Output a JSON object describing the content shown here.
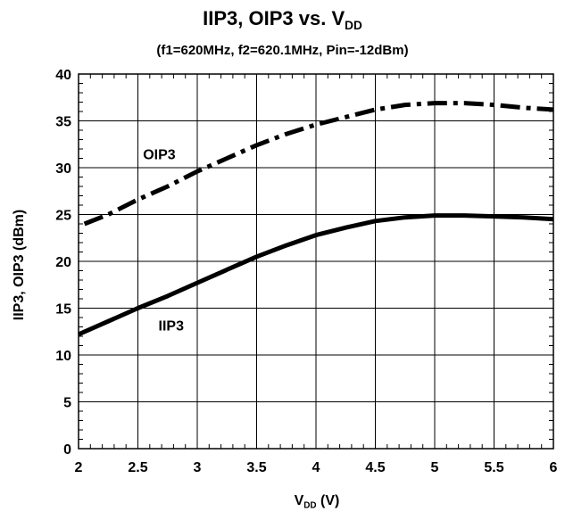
{
  "chart_data": {
    "type": "line",
    "title_main": "IIP3, OIP3 vs. V",
    "title_sub": "DD",
    "subtitle": "(f1=620MHz, f2=620.1MHz, Pin=-12dBm)",
    "xlabel_main": "V",
    "xlabel_sub": "DD",
    "xlabel_unit": " (V)",
    "ylabel": "IIP3, OIP3 (dBm)",
    "xlim": [
      2,
      6
    ],
    "ylim": [
      0,
      40
    ],
    "xticks": [
      "2",
      "2.5",
      "3",
      "3.5",
      "4",
      "4.5",
      "5",
      "5.5",
      "6"
    ],
    "yticks": [
      "0",
      "5",
      "10",
      "15",
      "20",
      "25",
      "30",
      "35",
      "40"
    ],
    "grid": true,
    "series": [
      {
        "name": "OIP3",
        "style": "dash-dot",
        "color": "#000000",
        "x": [
          2.05,
          2.25,
          2.5,
          2.75,
          3.0,
          3.25,
          3.5,
          3.75,
          4.0,
          4.25,
          4.5,
          4.75,
          5.0,
          5.25,
          5.5,
          5.75,
          6.0
        ],
        "y": [
          24.0,
          25.0,
          26.6,
          28.0,
          29.6,
          31.0,
          32.4,
          33.6,
          34.6,
          35.4,
          36.2,
          36.7,
          36.9,
          36.9,
          36.7,
          36.4,
          36.2
        ]
      },
      {
        "name": "IIP3",
        "style": "solid",
        "color": "#000000",
        "x": [
          2.0,
          2.25,
          2.5,
          2.75,
          3.0,
          3.25,
          3.5,
          3.75,
          4.0,
          4.25,
          4.5,
          4.75,
          5.0,
          5.25,
          5.5,
          5.75,
          6.0
        ],
        "y": [
          12.2,
          13.6,
          15.0,
          16.3,
          17.7,
          19.1,
          20.5,
          21.7,
          22.8,
          23.6,
          24.3,
          24.7,
          24.9,
          24.9,
          24.8,
          24.7,
          24.5
        ]
      }
    ],
    "annotations": [
      {
        "text": "OIP3",
        "x": 2.68,
        "y": 30.9
      },
      {
        "text": "IIP3",
        "x": 2.78,
        "y": 12.6
      }
    ]
  }
}
